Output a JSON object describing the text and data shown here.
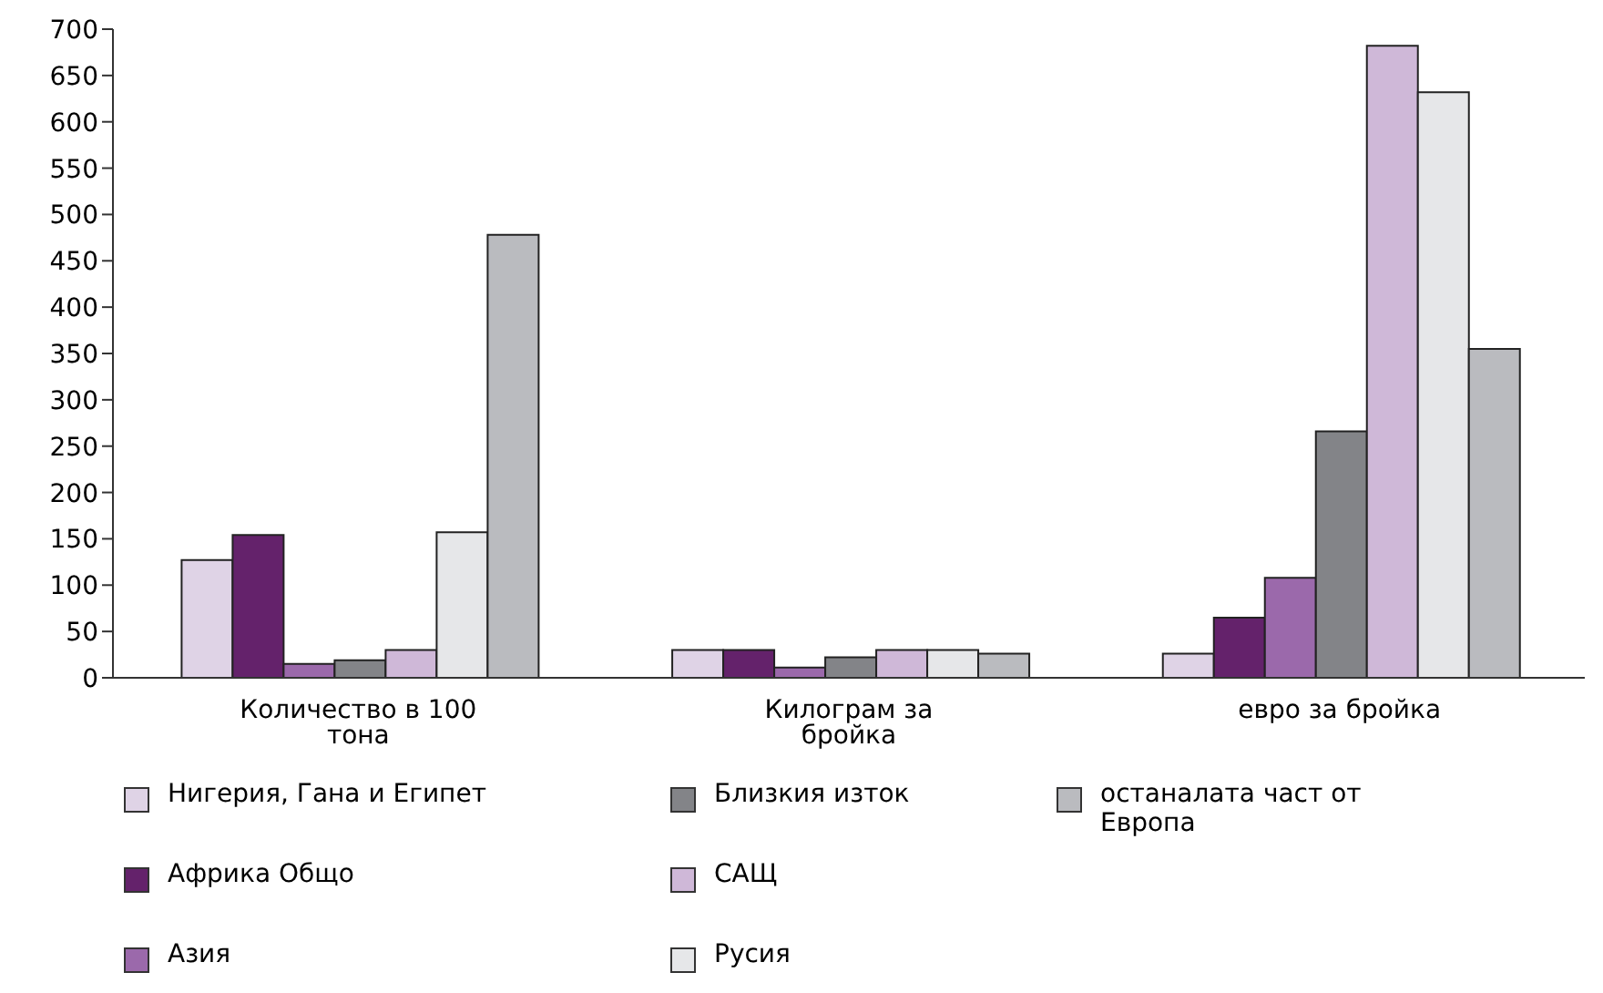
{
  "chart_data": {
    "type": "bar",
    "categories": [
      "Количество в 100 тона",
      "Килограм за бройка",
      "евро за бройка"
    ],
    "series": [
      {
        "name": "Нигерия, Гана и Египет",
        "color": "#dfd3e6",
        "values": [
          127,
          30,
          26
        ]
      },
      {
        "name": "Африка Общо",
        "color": "#64226b",
        "values": [
          154,
          30,
          65
        ]
      },
      {
        "name": "Азия",
        "color": "#9b69ab",
        "values": [
          15,
          11,
          108
        ]
      },
      {
        "name": "Близкия изток",
        "color": "#838488",
        "values": [
          19,
          22,
          266
        ]
      },
      {
        "name": "САЩ",
        "color": "#cfb8d8",
        "values": [
          30,
          30,
          682
        ]
      },
      {
        "name": "Русия",
        "color": "#e6e7e9",
        "values": [
          157,
          30,
          632
        ]
      },
      {
        "name": "останалата част от Европа",
        "color": "#babbbf",
        "values": [
          478,
          26,
          355
        ]
      }
    ],
    "ylim": [
      0,
      700
    ],
    "yticks": [
      0,
      50,
      100,
      150,
      200,
      250,
      300,
      350,
      400,
      450,
      500,
      550,
      600,
      650,
      700
    ],
    "grid": false,
    "legend": "bottom"
  }
}
